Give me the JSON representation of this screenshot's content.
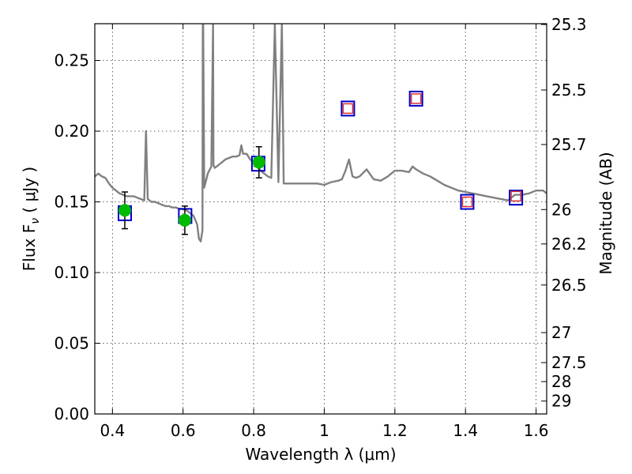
{
  "chart_data": {
    "type": "line",
    "xlabel": "Wavelength  λ (μm)",
    "ylabel": "Flux  F",
    "ylabel_sub": "ν",
    "ylabel_unit": "  ( μJy )",
    "ylabel_right": "Magnitude (AB)",
    "xlim": [
      0.35,
      1.63
    ],
    "ylim": [
      0.0,
      0.276
    ],
    "grid": true,
    "x_ticks": [
      {
        "value": 0.4,
        "label": "0.4"
      },
      {
        "value": 0.6,
        "label": "0.6"
      },
      {
        "value": 0.8,
        "label": "0.8"
      },
      {
        "value": 1.0,
        "label": "1"
      },
      {
        "value": 1.2,
        "label": "1.2"
      },
      {
        "value": 1.4,
        "label": "1.4"
      },
      {
        "value": 1.6,
        "label": "1.6"
      }
    ],
    "y_ticks": [
      {
        "value": 0.0,
        "label": "0.00"
      },
      {
        "value": 0.05,
        "label": "0.05"
      },
      {
        "value": 0.1,
        "label": "0.10"
      },
      {
        "value": 0.15,
        "label": "0.15"
      },
      {
        "value": 0.2,
        "label": "0.20"
      },
      {
        "value": 0.25,
        "label": "0.25"
      }
    ],
    "mag_ticks": [
      {
        "value": 25.3,
        "label": "25.3"
      },
      {
        "value": 25.5,
        "label": "25.5"
      },
      {
        "value": 25.7,
        "label": "25.7"
      },
      {
        "value": 26.0,
        "label": "26"
      },
      {
        "value": 26.2,
        "label": "26.2"
      },
      {
        "value": 26.5,
        "label": "26.5"
      },
      {
        "value": 27.0,
        "label": "27"
      },
      {
        "value": 27.5,
        "label": "27.5"
      },
      {
        "value": 28.0,
        "label": "28"
      },
      {
        "value": 29.0,
        "label": "29"
      }
    ],
    "colors": {
      "spectrum": "#808080",
      "measured": "#00bb00",
      "model_box": "#0000cc",
      "upper_box": "#e03030",
      "errorbar": "#000000"
    },
    "series": [
      {
        "type": "spectrum",
        "x": [
          0.35,
          0.36,
          0.37,
          0.38,
          0.39,
          0.4,
          0.41,
          0.42,
          0.43,
          0.44,
          0.45,
          0.46,
          0.47,
          0.48,
          0.49,
          0.495,
          0.5,
          0.51,
          0.52,
          0.53,
          0.54,
          0.55,
          0.56,
          0.57,
          0.58,
          0.59,
          0.6,
          0.61,
          0.62,
          0.63,
          0.64,
          0.645,
          0.65,
          0.655,
          0.656,
          0.657,
          0.66,
          0.665,
          0.67,
          0.68,
          0.685,
          0.686,
          0.69,
          0.7,
          0.71,
          0.72,
          0.73,
          0.74,
          0.75,
          0.76,
          0.765,
          0.77,
          0.78,
          0.79,
          0.8,
          0.81,
          0.82,
          0.83,
          0.84,
          0.85,
          0.86,
          0.87,
          0.88,
          0.885,
          0.89,
          0.9,
          0.92,
          0.94,
          0.96,
          0.98,
          1.0,
          1.02,
          1.04,
          1.05,
          1.06,
          1.07,
          1.08,
          1.09,
          1.1,
          1.12,
          1.14,
          1.16,
          1.18,
          1.2,
          1.22,
          1.24,
          1.25,
          1.26,
          1.28,
          1.3,
          1.32,
          1.34,
          1.36,
          1.38,
          1.4,
          1.42,
          1.44,
          1.46,
          1.48,
          1.5,
          1.52,
          1.54,
          1.56,
          1.58,
          1.6,
          1.62,
          1.63
        ],
        "y": [
          0.168,
          0.17,
          0.168,
          0.167,
          0.163,
          0.16,
          0.158,
          0.156,
          0.155,
          0.154,
          0.154,
          0.154,
          0.153,
          0.152,
          0.151,
          0.2,
          0.152,
          0.15,
          0.15,
          0.149,
          0.148,
          0.147,
          0.147,
          0.146,
          0.146,
          0.145,
          0.145,
          0.144,
          0.142,
          0.14,
          0.134,
          0.124,
          0.122,
          0.13,
          0.276,
          0.276,
          0.16,
          0.165,
          0.17,
          0.175,
          0.276,
          0.176,
          0.174,
          0.176,
          0.178,
          0.18,
          0.181,
          0.182,
          0.182,
          0.183,
          0.19,
          0.184,
          0.184,
          0.18,
          0.178,
          0.175,
          0.172,
          0.17,
          0.168,
          0.167,
          0.276,
          0.164,
          0.276,
          0.163,
          0.163,
          0.163,
          0.163,
          0.163,
          0.163,
          0.163,
          0.162,
          0.164,
          0.165,
          0.166,
          0.172,
          0.18,
          0.168,
          0.167,
          0.168,
          0.173,
          0.166,
          0.165,
          0.168,
          0.172,
          0.172,
          0.171,
          0.175,
          0.173,
          0.17,
          0.168,
          0.165,
          0.162,
          0.16,
          0.158,
          0.157,
          0.156,
          0.155,
          0.154,
          0.153,
          0.152,
          0.151,
          0.155,
          0.155,
          0.156,
          0.158,
          0.158,
          0.156
        ]
      },
      {
        "type": "measured",
        "points": [
          {
            "x": 0.435,
            "y": 0.144,
            "err": 0.013
          },
          {
            "x": 0.605,
            "y": 0.137,
            "err": 0.01
          },
          {
            "x": 0.815,
            "y": 0.178,
            "err": 0.011
          }
        ]
      },
      {
        "type": "model",
        "points": [
          {
            "x": 0.435,
            "y": 0.142
          },
          {
            "x": 0.606,
            "y": 0.14
          },
          {
            "x": 0.813,
            "y": 0.177
          },
          {
            "x": 1.067,
            "y": 0.216
          },
          {
            "x": 1.26,
            "y": 0.223
          },
          {
            "x": 1.405,
            "y": 0.15
          },
          {
            "x": 1.543,
            "y": 0.153
          }
        ]
      },
      {
        "type": "upper_limit",
        "points": [
          {
            "x": 1.067,
            "y": 0.216
          },
          {
            "x": 1.26,
            "y": 0.223
          },
          {
            "x": 1.405,
            "y": 0.15
          },
          {
            "x": 1.543,
            "y": 0.154
          }
        ]
      }
    ]
  }
}
